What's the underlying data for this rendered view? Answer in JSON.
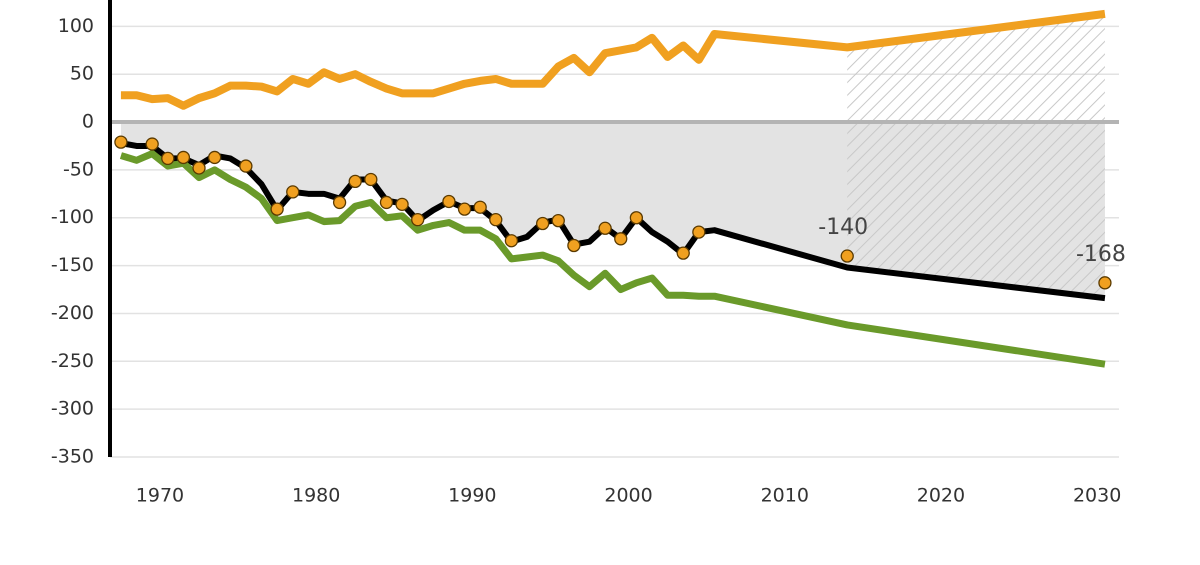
{
  "chart_data": {
    "type": "line",
    "xlim": [
      1966.8,
      2031.4
    ],
    "ylim": [
      -350,
      127
    ],
    "xticks": [
      1970,
      1980,
      1990,
      2000,
      2010,
      2020,
      2030
    ],
    "yticks": [
      100,
      50,
      0,
      -50,
      -100,
      -150,
      -200,
      -250,
      -300,
      -350
    ],
    "grid": true,
    "series": [
      {
        "color": "#f0a020",
        "x": [
          1967.5,
          1968.5,
          1969.5,
          1970.5,
          1971.5,
          1972.5,
          1973.5,
          1974.5,
          1975.5,
          1976.5,
          1977.5,
          1978.5,
          1979.5,
          1980.5,
          1981.5,
          1982.5,
          1983.5,
          1984.5,
          1985.5,
          1986.5,
          1987.5,
          1988.5,
          1989.5,
          1990.5,
          1991.5,
          1992.5,
          1993.5,
          1994.5,
          1995.5,
          1996.5,
          1997.5,
          1998.5,
          1999.5,
          2000.5,
          2001.5,
          2002.5,
          2003.5,
          2004.5,
          2005.5,
          2014,
          2030.5
        ],
        "values": [
          28,
          28,
          24,
          25,
          17,
          25,
          30,
          38,
          38,
          37,
          32,
          45,
          40,
          52,
          45,
          50,
          42,
          35,
          30,
          30,
          30,
          35,
          40,
          43,
          45,
          40,
          40,
          40,
          58,
          67,
          52,
          72,
          75,
          78,
          88,
          68,
          80,
          65,
          92,
          78,
          113
        ]
      },
      {
        "color": "#000000",
        "x": [
          1967.5,
          1968.5,
          1969.5,
          1970.5,
          1971.5,
          1972.5,
          1973.5,
          1974.5,
          1975.5,
          1976.5,
          1977.5,
          1978.5,
          1979.5,
          1980.5,
          1981.5,
          1982.5,
          1983.5,
          1984.5,
          1985.5,
          1986.5,
          1987.5,
          1988.5,
          1989.5,
          1990.5,
          1991.5,
          1992.5,
          1993.5,
          1994.5,
          1995.5,
          1996.5,
          1997.5,
          1998.5,
          1999.5,
          2000.5,
          2001.5,
          2002.5,
          2003.5,
          2004.5,
          2005.5,
          2014,
          2030.5
        ],
        "values": [
          -22,
          -25,
          -25,
          -38,
          -38,
          -45,
          -35,
          -38,
          -48,
          -65,
          -92,
          -73,
          -75,
          -75,
          -80,
          -60,
          -60,
          -82,
          -85,
          -103,
          -92,
          -83,
          -90,
          -90,
          -103,
          -125,
          -120,
          -105,
          -102,
          -128,
          -125,
          -110,
          -122,
          -100,
          -115,
          -125,
          -138,
          -115,
          -113,
          -152,
          -184
        ]
      },
      {
        "color": "#6a9a2a",
        "x": [
          1967.5,
          1968.5,
          1969.5,
          1970.5,
          1971.5,
          1972.5,
          1973.5,
          1974.5,
          1975.5,
          1976.5,
          1977.5,
          1978.5,
          1979.5,
          1980.5,
          1981.5,
          1982.5,
          1983.5,
          1984.5,
          1985.5,
          1986.5,
          1987.5,
          1988.5,
          1989.5,
          1990.5,
          1991.5,
          1992.5,
          1993.5,
          1994.5,
          1995.5,
          1996.5,
          1997.5,
          1998.5,
          1999.5,
          2000.5,
          2001.5,
          2002.5,
          2003.5,
          2004.5,
          2005.5,
          2014,
          2030.5
        ],
        "values": [
          -35,
          -40,
          -33,
          -46,
          -43,
          -58,
          -50,
          -60,
          -68,
          -80,
          -103,
          -100,
          -97,
          -104,
          -103,
          -88,
          -84,
          -100,
          -98,
          -113,
          -108,
          -105,
          -113,
          -113,
          -122,
          -143,
          -141,
          -139,
          -145,
          -160,
          -172,
          -158,
          -175,
          -168,
          -163,
          -181,
          -181,
          -182,
          -182,
          -212,
          -253
        ]
      }
    ],
    "points": {
      "color": "#f0a020",
      "x": [
        1967.5,
        1969.5,
        1970.5,
        1971.5,
        1972.5,
        1973.5,
        1975.5,
        1977.5,
        1978.5,
        1981.5,
        1982.5,
        1983.5,
        1984.5,
        1985.5,
        1986.5,
        1988.5,
        1989.5,
        1990.5,
        1991.5,
        1992.5,
        1994.5,
        1995.5,
        1996.5,
        1998.5,
        1999.5,
        2000.5,
        2003.5,
        2004.5,
        2014,
        2030.5
      ],
      "values": [
        -21,
        -23,
        -38,
        -37,
        -48,
        -37,
        -46,
        -91,
        -73,
        -84,
        -62,
        -60,
        -84,
        -86,
        -102,
        -83,
        -91,
        -89,
        -102,
        -124,
        -106,
        -103,
        -129,
        -111,
        -122,
        -100,
        -137,
        -115,
        -140,
        -168
      ],
      "value_labels": [
        null,
        null,
        null,
        null,
        null,
        null,
        null,
        null,
        null,
        null,
        null,
        null,
        null,
        null,
        null,
        null,
        null,
        null,
        null,
        null,
        null,
        null,
        null,
        null,
        null,
        null,
        null,
        null,
        "-140",
        "-168"
      ]
    }
  }
}
